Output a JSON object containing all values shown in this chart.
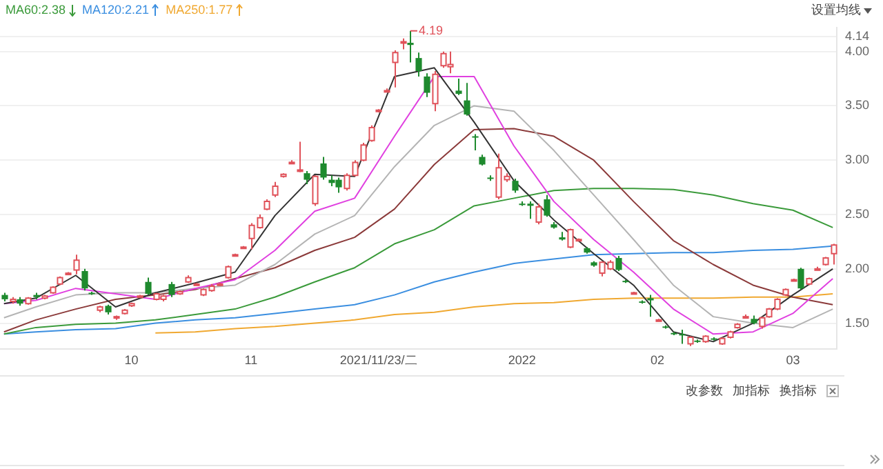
{
  "chart_data": {
    "type": "candlestick",
    "categories": [
      null,
      null,
      null,
      null,
      null,
      null,
      null,
      null,
      null,
      null,
      null,
      null,
      null,
      null,
      null,
      null,
      "10",
      null,
      null,
      null,
      null,
      null,
      null,
      null,
      null,
      null,
      null,
      null,
      null,
      null,
      null,
      "11",
      null,
      null,
      null,
      null,
      null,
      null,
      null,
      null,
      null,
      null,
      null,
      null,
      null,
      null,
      null,
      "2021/11/23/二",
      null,
      null,
      null,
      null,
      null,
      null,
      null,
      null,
      null,
      null,
      null,
      null,
      null,
      null,
      null,
      null,
      null,
      "2022",
      null,
      null,
      null,
      null,
      null,
      null,
      null,
      null,
      null,
      null,
      null,
      null,
      null,
      null,
      null,
      null,
      "02",
      null,
      null,
      null,
      null,
      null,
      null,
      null,
      null,
      null,
      null,
      null,
      null,
      null,
      null,
      null,
      null,
      "03",
      null,
      null,
      null,
      null,
      null
    ],
    "ohlc": [
      [
        1.76,
        1.78,
        1.7,
        1.72
      ],
      [
        1.7,
        1.74,
        1.68,
        1.72
      ],
      [
        1.72,
        1.74,
        1.66,
        1.68
      ],
      [
        1.68,
        1.74,
        1.67,
        1.73
      ],
      [
        1.76,
        1.78,
        1.72,
        1.74
      ],
      [
        1.73,
        1.76,
        1.72,
        1.75
      ],
      [
        1.78,
        1.84,
        1.77,
        1.83
      ],
      [
        1.86,
        1.93,
        1.85,
        1.92
      ],
      [
        1.96,
        1.97,
        1.95,
        1.96
      ],
      [
        1.99,
        2.13,
        1.95,
        2.08
      ],
      [
        1.98,
        2.0,
        1.8,
        1.82
      ],
      [
        1.78,
        1.79,
        1.76,
        1.77
      ],
      [
        1.62,
        1.66,
        1.6,
        1.65
      ],
      [
        1.66,
        1.67,
        1.58,
        1.6
      ],
      [
        1.55,
        1.57,
        1.53,
        1.56
      ],
      [
        1.59,
        1.63,
        1.58,
        1.62
      ],
      [
        1.66,
        1.69,
        1.65,
        1.68
      ],
      [
        1.75,
        1.76,
        1.74,
        1.75
      ],
      [
        1.88,
        1.92,
        1.76,
        1.77
      ],
      [
        1.72,
        1.78,
        1.71,
        1.77
      ],
      [
        1.72,
        1.76,
        1.7,
        1.75
      ],
      [
        1.86,
        1.88,
        1.74,
        1.76
      ],
      [
        1.77,
        1.8,
        1.76,
        1.79
      ],
      [
        1.88,
        1.94,
        1.87,
        1.92
      ],
      [
        1.86,
        1.87,
        1.85,
        1.86
      ],
      [
        1.76,
        1.82,
        1.75,
        1.81
      ],
      [
        1.8,
        1.86,
        1.79,
        1.84
      ],
      [
        1.85,
        1.87,
        1.84,
        1.86
      ],
      [
        1.92,
        2.03,
        1.91,
        2.02
      ],
      [
        2.13,
        2.14,
        2.12,
        2.13
      ],
      [
        2.2,
        2.21,
        2.19,
        2.2
      ],
      [
        2.28,
        2.42,
        2.18,
        2.4
      ],
      [
        2.38,
        2.5,
        2.37,
        2.47
      ],
      [
        2.55,
        2.64,
        2.54,
        2.62
      ],
      [
        2.68,
        2.8,
        2.66,
        2.76
      ],
      [
        2.85,
        2.88,
        2.84,
        2.87
      ],
      [
        2.98,
        3.0,
        2.97,
        2.98
      ],
      [
        2.9,
        3.17,
        2.89,
        2.91
      ],
      [
        2.88,
        2.9,
        2.78,
        2.82
      ],
      [
        2.6,
        2.86,
        2.58,
        2.85
      ],
      [
        2.97,
        3.03,
        2.82,
        2.84
      ],
      [
        2.82,
        2.86,
        2.76,
        2.79
      ],
      [
        2.82,
        2.84,
        2.7,
        2.75
      ],
      [
        2.74,
        2.88,
        2.72,
        2.86
      ],
      [
        2.86,
        3.0,
        2.85,
        2.98
      ],
      [
        3.0,
        3.16,
        2.99,
        3.14
      ],
      [
        3.18,
        3.32,
        3.17,
        3.3
      ],
      [
        3.45,
        3.47,
        3.44,
        3.46
      ],
      [
        3.64,
        3.66,
        3.63,
        3.64
      ],
      [
        3.9,
        4.01,
        3.67,
        3.99
      ],
      [
        4.08,
        4.12,
        4.02,
        4.09
      ],
      [
        4.08,
        4.19,
        3.9,
        4.06
      ],
      [
        3.94,
        3.99,
        3.77,
        3.82
      ],
      [
        3.77,
        3.8,
        3.58,
        3.62
      ],
      [
        3.52,
        3.82,
        3.45,
        3.79
      ],
      [
        3.87,
        4.0,
        3.85,
        3.98
      ],
      [
        3.86,
        4.0,
        3.8,
        3.88
      ],
      [
        3.64,
        3.75,
        3.6,
        3.61
      ],
      [
        3.55,
        3.71,
        3.41,
        3.42
      ],
      [
        3.22,
        3.24,
        3.09,
        3.21
      ],
      [
        3.03,
        3.05,
        2.95,
        2.96
      ],
      [
        2.84,
        2.86,
        2.81,
        2.83
      ],
      [
        2.66,
        3.06,
        2.64,
        2.93
      ],
      [
        2.82,
        2.88,
        2.8,
        2.85
      ],
      [
        2.81,
        2.83,
        2.7,
        2.72
      ],
      [
        2.6,
        2.62,
        2.58,
        2.59
      ],
      [
        2.6,
        2.62,
        2.46,
        2.58
      ],
      [
        2.43,
        2.6,
        2.41,
        2.57
      ],
      [
        2.64,
        2.68,
        2.48,
        2.49
      ],
      [
        2.41,
        2.43,
        2.37,
        2.38
      ],
      [
        2.29,
        2.34,
        2.26,
        2.27
      ],
      [
        2.2,
        2.37,
        2.19,
        2.36
      ],
      [
        2.27,
        2.28,
        2.26,
        2.27
      ],
      [
        2.19,
        2.2,
        2.14,
        2.15
      ],
      [
        2.06,
        2.07,
        2.02,
        2.03
      ],
      [
        1.96,
        2.07,
        1.93,
        2.06
      ],
      [
        2.0,
        2.08,
        1.99,
        2.06
      ],
      [
        2.1,
        2.12,
        1.98,
        1.99
      ],
      [
        1.89,
        1.9,
        1.87,
        1.88
      ],
      [
        1.78,
        1.79,
        1.77,
        1.78
      ],
      [
        1.7,
        1.71,
        1.68,
        1.69
      ],
      [
        1.73,
        1.76,
        1.56,
        1.71
      ],
      [
        1.53,
        1.54,
        1.52,
        1.53
      ],
      [
        1.47,
        1.48,
        1.45,
        1.46
      ],
      [
        1.41,
        1.42,
        1.39,
        1.4
      ],
      [
        1.4,
        1.44,
        1.31,
        1.39
      ],
      [
        1.31,
        1.38,
        1.29,
        1.37
      ],
      [
        1.34,
        1.35,
        1.32,
        1.33
      ],
      [
        1.33,
        1.39,
        1.32,
        1.38
      ],
      [
        1.36,
        1.37,
        1.34,
        1.35
      ],
      [
        1.31,
        1.37,
        1.3,
        1.36
      ],
      [
        1.37,
        1.43,
        1.36,
        1.42
      ],
      [
        1.46,
        1.5,
        1.45,
        1.49
      ],
      [
        1.56,
        1.58,
        1.55,
        1.56
      ],
      [
        1.54,
        1.57,
        1.49,
        1.5
      ],
      [
        1.47,
        1.56,
        1.45,
        1.55
      ],
      [
        1.56,
        1.64,
        1.55,
        1.63
      ],
      [
        1.63,
        1.73,
        1.62,
        1.72
      ],
      [
        1.76,
        1.82,
        1.75,
        1.81
      ],
      [
        1.9,
        1.91,
        1.89,
        1.9
      ],
      [
        2.0,
        2.01,
        1.81,
        1.82
      ],
      [
        1.86,
        1.92,
        1.85,
        1.91
      ],
      [
        2.0,
        2.02,
        1.99,
        2.0
      ],
      [
        2.04,
        2.11,
        2.03,
        2.1
      ],
      [
        2.14,
        2.23,
        2.04,
        2.22
      ]
    ],
    "series": [
      {
        "type": "line",
        "color": "#333333",
        "values": [
          1.68,
          null,
          null,
          null,
          1.73,
          null,
          null,
          null,
          null,
          1.94,
          null,
          null,
          null,
          null,
          1.65,
          null,
          null,
          null,
          null,
          1.78,
          null,
          null,
          null,
          null,
          1.87,
          null,
          null,
          null,
          null,
          1.97,
          null,
          null,
          null,
          null,
          2.49,
          null,
          null,
          null,
          null,
          2.87,
          null,
          null,
          null,
          null,
          2.85,
          null,
          null,
          null,
          null,
          3.77,
          null,
          null,
          null,
          null,
          3.85,
          null,
          null,
          null,
          null,
          3.35,
          null,
          null,
          null,
          null,
          2.81,
          null,
          null,
          null,
          null,
          2.45,
          null,
          null,
          null,
          null,
          2.14,
          null,
          null,
          null,
          null,
          1.85,
          null,
          null,
          null,
          null,
          1.42,
          null,
          null,
          null,
          null,
          1.33,
          null,
          null,
          null,
          null,
          1.5,
          null,
          null,
          null,
          null,
          1.76,
          null,
          null,
          null,
          null,
          2.0
        ]
      },
      {
        "type": "line",
        "color": "#e040e0",
        "values": [
          1.68,
          null,
          null,
          null,
          1.71,
          null,
          null,
          null,
          null,
          1.82,
          null,
          null,
          null,
          null,
          1.77,
          null,
          null,
          null,
          null,
          1.72,
          null,
          null,
          null,
          null,
          1.82,
          null,
          null,
          null,
          null,
          1.9,
          null,
          null,
          null,
          null,
          2.17,
          null,
          null,
          null,
          null,
          2.53,
          null,
          null,
          null,
          null,
          2.65,
          null,
          null,
          null,
          null,
          3.22,
          null,
          null,
          null,
          null,
          3.77,
          null,
          null,
          null,
          null,
          3.77,
          null,
          null,
          null,
          null,
          3.13,
          null,
          null,
          null,
          null,
          2.62,
          null,
          null,
          null,
          null,
          2.27,
          null,
          null,
          null,
          null,
          1.97,
          null,
          null,
          null,
          null,
          1.63,
          null,
          null,
          null,
          null,
          1.4,
          null,
          null,
          null,
          null,
          1.42,
          null,
          null,
          null,
          null,
          1.59,
          null,
          null,
          null,
          null,
          1.91
        ]
      },
      {
        "type": "line",
        "color": "#b4b4b4",
        "values": [
          1.55,
          null,
          null,
          null,
          1.65,
          null,
          null,
          null,
          null,
          1.76,
          null,
          null,
          null,
          null,
          1.78,
          null,
          null,
          null,
          null,
          1.78,
          null,
          null,
          null,
          null,
          1.82,
          null,
          null,
          null,
          null,
          1.85,
          null,
          null,
          null,
          null,
          2.04,
          null,
          null,
          null,
          null,
          2.32,
          null,
          null,
          null,
          null,
          2.49,
          null,
          null,
          null,
          null,
          2.94,
          null,
          null,
          null,
          null,
          3.32,
          null,
          null,
          null,
          null,
          3.5,
          null,
          null,
          null,
          null,
          3.45,
          null,
          null,
          null,
          null,
          3.09,
          null,
          null,
          null,
          null,
          2.68,
          null,
          null,
          null,
          null,
          2.27,
          null,
          null,
          null,
          null,
          1.85,
          null,
          null,
          null,
          null,
          1.56,
          null,
          null,
          null,
          null,
          1.5,
          null,
          null,
          null,
          null,
          1.46,
          null,
          null,
          null,
          null,
          1.63
        ]
      },
      {
        "type": "line",
        "color": "#8b3a3a",
        "values": [
          1.42,
          null,
          null,
          null,
          1.53,
          null,
          null,
          null,
          null,
          1.63,
          null,
          null,
          null,
          null,
          1.72,
          null,
          null,
          null,
          null,
          1.76,
          null,
          null,
          null,
          null,
          1.81,
          null,
          null,
          null,
          null,
          1.91,
          null,
          null,
          null,
          null,
          2.01,
          null,
          null,
          null,
          null,
          2.17,
          null,
          null,
          null,
          null,
          2.29,
          null,
          null,
          null,
          null,
          2.55,
          null,
          null,
          null,
          null,
          2.96,
          null,
          null,
          null,
          null,
          3.28,
          null,
          null,
          null,
          null,
          3.29,
          null,
          null,
          null,
          null,
          3.22,
          null,
          null,
          null,
          null,
          3.0,
          null,
          null,
          null,
          null,
          2.62,
          null,
          null,
          null,
          null,
          2.26,
          null,
          null,
          null,
          null,
          2.04,
          null,
          null,
          null,
          null,
          1.85,
          null,
          null,
          null,
          null,
          1.74,
          null,
          null,
          null,
          null,
          1.67
        ]
      },
      {
        "type": "line",
        "name": "MA60:2.38",
        "color": "#3a9a3a",
        "values": [
          1.4,
          null,
          null,
          null,
          1.46,
          null,
          null,
          null,
          null,
          1.49,
          null,
          null,
          null,
          null,
          1.5,
          null,
          null,
          null,
          null,
          1.53,
          null,
          null,
          null,
          null,
          1.58,
          null,
          null,
          null,
          null,
          1.63,
          null,
          null,
          null,
          null,
          1.74,
          null,
          null,
          null,
          null,
          1.88,
          null,
          null,
          null,
          null,
          2.01,
          null,
          null,
          null,
          null,
          2.23,
          null,
          null,
          null,
          null,
          2.36,
          null,
          null,
          null,
          null,
          2.58,
          null,
          null,
          null,
          null,
          2.65,
          null,
          null,
          null,
          null,
          2.72,
          null,
          null,
          null,
          null,
          2.74,
          null,
          null,
          null,
          null,
          2.74,
          null,
          null,
          null,
          null,
          2.73,
          null,
          null,
          null,
          null,
          2.68,
          null,
          null,
          null,
          null,
          2.6,
          null,
          null,
          null,
          null,
          2.54,
          null,
          null,
          null,
          null,
          2.38
        ]
      },
      {
        "type": "line",
        "name": "MA120:2.21",
        "color": "#3a8ee0",
        "values": [
          1.4,
          null,
          null,
          null,
          1.42,
          null,
          null,
          null,
          null,
          1.44,
          null,
          null,
          null,
          null,
          1.45,
          null,
          null,
          null,
          null,
          1.5,
          null,
          null,
          null,
          null,
          1.53,
          null,
          null,
          null,
          null,
          1.55,
          null,
          null,
          null,
          null,
          1.59,
          null,
          null,
          null,
          null,
          1.63,
          null,
          null,
          null,
          null,
          1.67,
          null,
          null,
          null,
          null,
          1.76,
          null,
          null,
          null,
          null,
          1.88,
          null,
          null,
          null,
          null,
          1.97,
          null,
          null,
          null,
          null,
          2.05,
          null,
          null,
          null,
          null,
          2.09,
          null,
          null,
          null,
          null,
          2.13,
          null,
          null,
          null,
          null,
          2.14,
          null,
          null,
          null,
          null,
          2.15,
          null,
          null,
          null,
          null,
          2.15,
          null,
          null,
          null,
          null,
          2.17,
          null,
          null,
          null,
          null,
          2.18,
          null,
          null,
          null,
          null,
          2.21
        ]
      },
      {
        "type": "line",
        "name": "MA250:1.77",
        "color": "#f0a830",
        "values": [
          null,
          null,
          null,
          null,
          null,
          null,
          null,
          null,
          null,
          null,
          null,
          null,
          null,
          null,
          null,
          null,
          null,
          null,
          null,
          1.41,
          null,
          null,
          null,
          null,
          1.42,
          null,
          null,
          null,
          null,
          1.45,
          null,
          null,
          null,
          null,
          1.47,
          null,
          null,
          null,
          null,
          1.5,
          null,
          null,
          null,
          null,
          1.53,
          null,
          null,
          null,
          null,
          1.58,
          null,
          null,
          null,
          null,
          1.6,
          null,
          null,
          null,
          null,
          1.65,
          null,
          null,
          null,
          null,
          1.68,
          null,
          null,
          null,
          null,
          1.69,
          null,
          null,
          null,
          null,
          1.72,
          null,
          null,
          null,
          null,
          1.73,
          null,
          null,
          null,
          null,
          1.73,
          null,
          null,
          null,
          null,
          1.73,
          null,
          null,
          null,
          null,
          1.74,
          null,
          null,
          null,
          null,
          1.74,
          null,
          null,
          null,
          null,
          1.77
        ]
      }
    ],
    "ylim": [
      1.26,
      4.22
    ],
    "yticks": [
      {
        "value": 1.5,
        "label": "1.50"
      },
      {
        "value": 2,
        "label": "2.00"
      },
      {
        "value": 2.5,
        "label": "2.50"
      },
      {
        "value": 3,
        "label": "3.00"
      },
      {
        "value": 3.5,
        "label": "3.50"
      },
      {
        "value": 4,
        "label": "4.00"
      },
      {
        "value": 4.14,
        "label": "4.14"
      }
    ],
    "grid": "y",
    "legend": "top left",
    "annotations": [
      "4.19",
      "设置均线",
      "改参数",
      "加指标",
      "换指标"
    ]
  }
}
